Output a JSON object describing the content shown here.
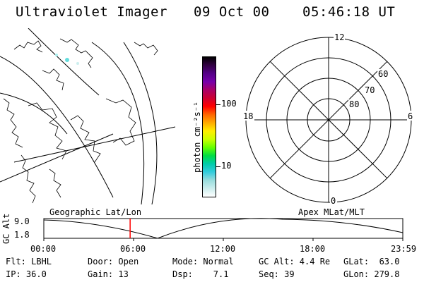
{
  "header": {
    "title": "Ultraviolet Imager",
    "date": "09 Oct 00",
    "time": "05:46:18 UT"
  },
  "map_panel": {
    "label": "Geographic Lat/Lon"
  },
  "colorbar": {
    "unit_label": "photon cm⁻²s⁻¹",
    "ticks": [
      "100",
      "10"
    ],
    "colors": [
      "#000000",
      "#330044",
      "#550088",
      "#7700aa",
      "#aa0066",
      "#cc0033",
      "#ff0000",
      "#ff6600",
      "#ffaa00",
      "#ffee00",
      "#ccff00",
      "#66ff00",
      "#00dd44",
      "#00ccaa",
      "#33ccdd",
      "#99dddd",
      "#cceeee",
      "#ffffff"
    ]
  },
  "polar_panel": {
    "label": "Apex MLat/MLT",
    "mlt_labels": {
      "top": "12",
      "left": "18",
      "right": "6",
      "bottom": "0"
    },
    "lat_labels": [
      "60",
      "70",
      "80"
    ]
  },
  "timeline": {
    "ylabel": "GC Alt",
    "yticks": [
      "9.0",
      "1.8"
    ],
    "xticks": [
      "00:00",
      "06:00",
      "12:00",
      "18:00",
      "23:59"
    ],
    "current_time_marker": "05:46",
    "marker_color": "#ff0000"
  },
  "status": {
    "flt": "Flt: LBHL",
    "ip": "IP: 36.0",
    "door": "Door: Open",
    "gain": "Gain: 13",
    "mode": "Mode: Normal",
    "dsp": "Dsp:    7.1",
    "gcalt": "GC Alt: 4.4 Re",
    "seq": "Seq: 39",
    "glat": "GLat:  63.0",
    "glon": "GLon: 279.8"
  }
}
